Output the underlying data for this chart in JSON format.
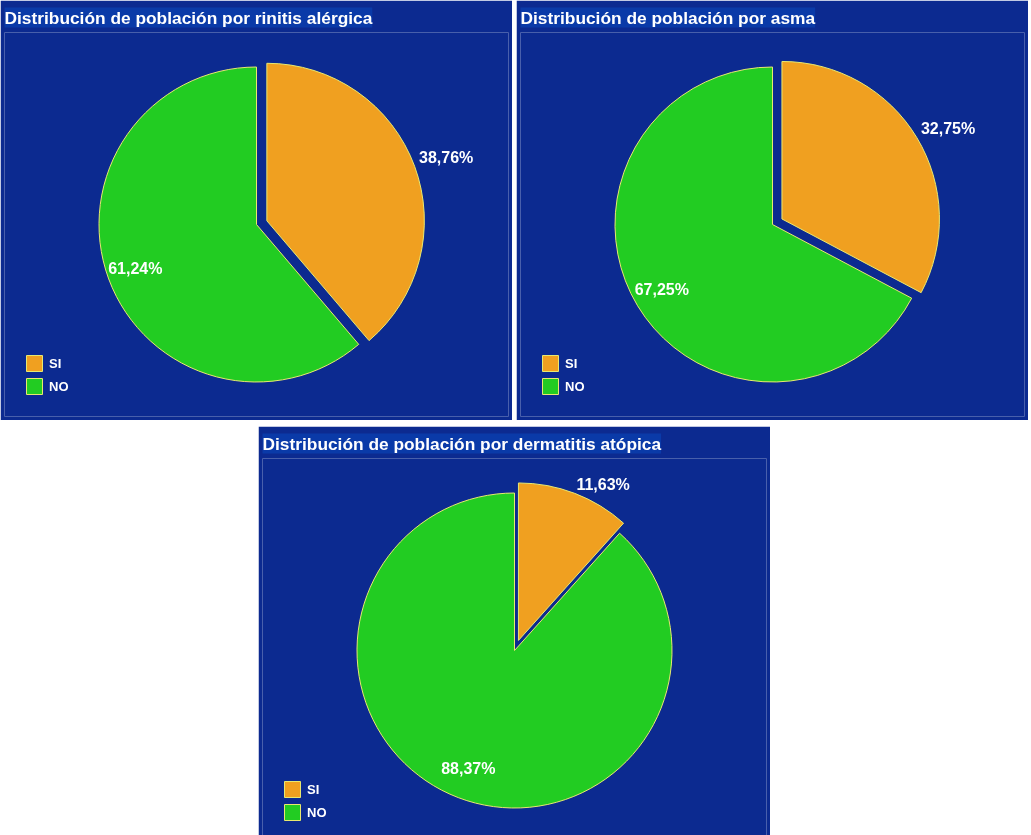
{
  "chart_data": [
    {
      "type": "pie",
      "title": "Distribución de población por rinitis alérgica",
      "categories": [
        "SI",
        "NO"
      ],
      "values": [
        38.76,
        61.24
      ],
      "colors": [
        "#f0a020",
        "#22cc22"
      ],
      "value_labels": [
        "38,76%",
        "61,24%"
      ],
      "legend": "bottom left"
    },
    {
      "type": "pie",
      "title": "Distribución de población por asma",
      "categories": [
        "SI",
        "NO"
      ],
      "values": [
        32.75,
        67.25
      ],
      "colors": [
        "#f0a020",
        "#22cc22"
      ],
      "value_labels": [
        "32,75%",
        "67,25%"
      ],
      "legend": "bottom left"
    },
    {
      "type": "pie",
      "title": "Distribución de población por dermatitis atópica",
      "categories": [
        "SI",
        "NO"
      ],
      "values": [
        11.63,
        88.37
      ],
      "colors": [
        "#f0a020",
        "#22cc22"
      ],
      "value_labels": [
        "11,63%",
        "88,37%"
      ],
      "legend": "bottom left"
    }
  ]
}
